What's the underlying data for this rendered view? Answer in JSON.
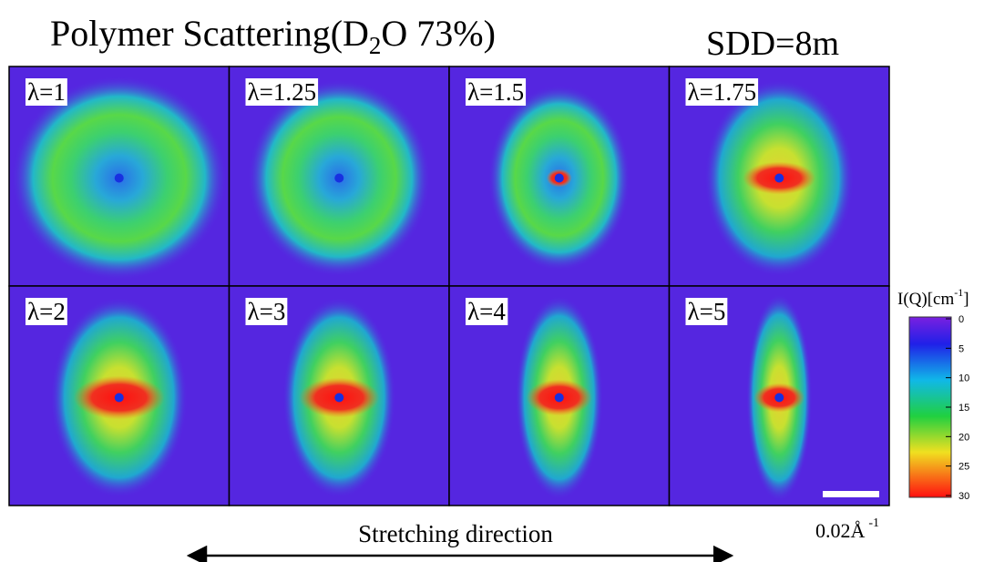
{
  "title": {
    "text": "Polymer Scattering(D",
    "subscript": "2",
    "suffix": "O 73%)"
  },
  "sdd": "SDD=8m",
  "panels": [
    {
      "label": "λ=1"
    },
    {
      "label": "λ=1.25"
    },
    {
      "label": "λ=1.5"
    },
    {
      "label": "λ=1.75"
    },
    {
      "label": "λ=2"
    },
    {
      "label": "λ=3"
    },
    {
      "label": "λ=4"
    },
    {
      "label": "λ=5"
    }
  ],
  "colorbar": {
    "title": "I(Q)[cm",
    "superscript": "-1",
    "suffix": "]",
    "ticks": [
      0,
      5,
      10,
      15,
      20,
      25,
      30
    ]
  },
  "scale_bar": {
    "label": "0.02Å",
    "superscript": "-1"
  },
  "direction": "Stretching direction"
}
